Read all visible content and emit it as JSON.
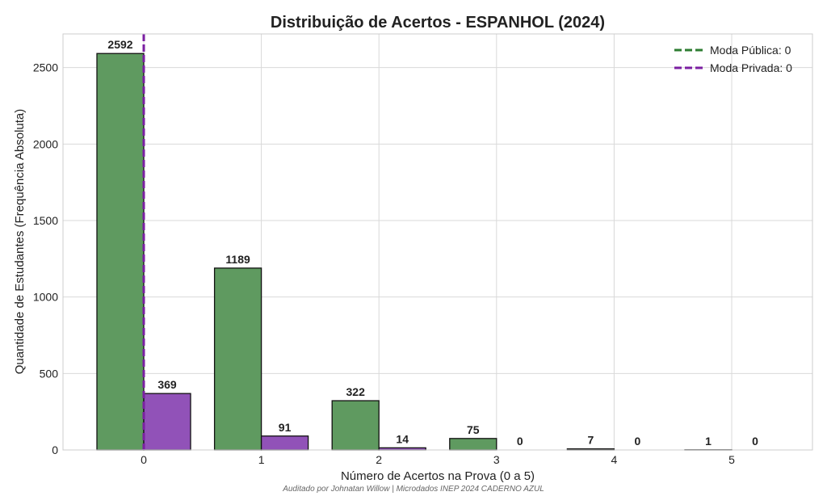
{
  "chart_data": {
    "type": "bar",
    "title": "Distribuição de Acertos - ESPANHOL (2024)",
    "xlabel": "Número de Acertos na Prova (0 a 5)",
    "ylabel": "Quantidade de Estudantes (Frequência Absoluta)",
    "categories": [
      "0",
      "1",
      "2",
      "3",
      "4",
      "5"
    ],
    "ylim": [
      0,
      2720
    ],
    "yticks": [
      0,
      500,
      1000,
      1500,
      2000,
      2500
    ],
    "grid": true,
    "legend_position": "top-right",
    "series": [
      {
        "values": [
          2592,
          1189,
          322,
          75,
          7,
          1
        ],
        "color": "#5f9a60"
      },
      {
        "values": [
          369,
          91,
          14,
          0,
          0,
          0
        ],
        "color": "#9152b8"
      }
    ],
    "mode_lines": [
      {
        "label": "Moda Pública: 0",
        "x": 0,
        "color": "#2e7d32"
      },
      {
        "label": "Moda Privada: 0",
        "x": 0,
        "color": "#7b1fa2"
      }
    ],
    "credit": "Auditado por Johnatan Willow | Microdados INEP 2024 CADERNO AZUL"
  }
}
